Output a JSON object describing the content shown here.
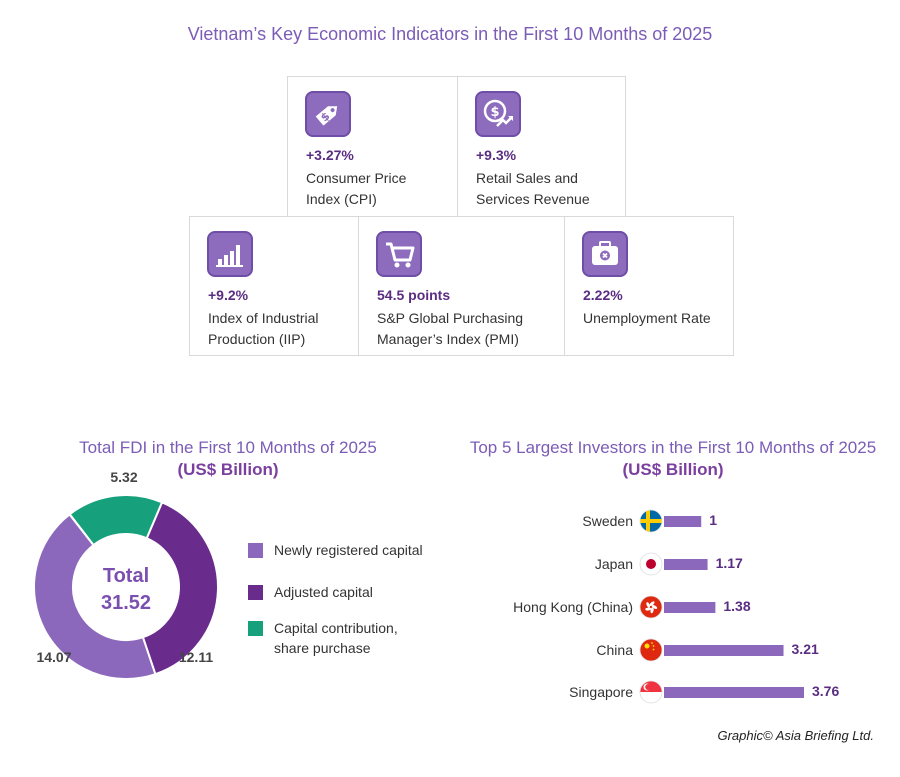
{
  "title": "Vietnam’s Key Economic Indicators in the First 10 Months of 2025",
  "indicators": [
    {
      "value": "+3.27%",
      "label_line1": "Consumer Price",
      "label_line2": "Index (CPI)",
      "icon": "price-tag-icon"
    },
    {
      "value": "+9.3%",
      "label_line1": "Retail Sales and",
      "label_line2": "Services Revenue",
      "icon": "money-growth-icon"
    },
    {
      "value": "+9.2%",
      "label_line1": "Index of Industrial",
      "label_line2": "Production (IIP)",
      "icon": "bar-chart-icon"
    },
    {
      "value": "54.5 points",
      "label_line1": "S&P Global Purchasing",
      "label_line2": "Manager’s Index (PMI)",
      "icon": "shopping-cart-icon"
    },
    {
      "value": "2.22%",
      "label_line1": "Unemployment Rate",
      "label_line2": "",
      "icon": "briefcase-icon"
    }
  ],
  "chart_data": [
    {
      "type": "pie",
      "title": "Total FDI in the First 10 Months of 2025",
      "subtitle": "(US$ Billion)",
      "center_label": "Total",
      "center_value": "31.52",
      "total": 31.52,
      "slices": [
        {
          "label": "Newly registered capital",
          "value": 14.07,
          "display": "14.07",
          "color": "#8b68bb"
        },
        {
          "label": "Adjusted capital",
          "value": 12.11,
          "display": "12.11",
          "color": "#6a2c8c"
        },
        {
          "label": "Capital contribution, share purchase",
          "value": 5.32,
          "display": "5.32",
          "color": "#16a07c"
        }
      ],
      "legend": [
        {
          "line1": "Newly registered capital",
          "line2": "",
          "color": "#8b68bb"
        },
        {
          "line1": "Adjusted capital",
          "line2": "",
          "color": "#6a2c8c"
        },
        {
          "line1": "Capital contribution,",
          "line2": "share purchase",
          "color": "#16a07c"
        }
      ]
    },
    {
      "type": "bar",
      "orientation": "horizontal",
      "title": "Top 5 Largest Investors in the First 10 Months of 2025",
      "subtitle": "(US$ Billion)",
      "categories": [
        "Sweden",
        "Japan",
        "Hong Kong (China)",
        "China",
        "Singapore"
      ],
      "values": [
        1,
        1.17,
        1.38,
        3.21,
        3.76
      ],
      "value_labels": [
        "1",
        "1.17",
        "1.38",
        "3.21",
        "3.76"
      ],
      "flags": [
        "sweden-flag-icon",
        "japan-flag-icon",
        "hong-kong-flag-icon",
        "china-flag-icon",
        "singapore-flag-icon"
      ],
      "bar_color": "#8b68bb",
      "xlim": [
        0,
        3.76
      ]
    }
  ],
  "credit": "Graphic© Asia Briefing Ltd.",
  "colors": {
    "title": "#7b5cb6",
    "accent": "#5a2d82",
    "icon_bg": "#8d6bbd"
  }
}
